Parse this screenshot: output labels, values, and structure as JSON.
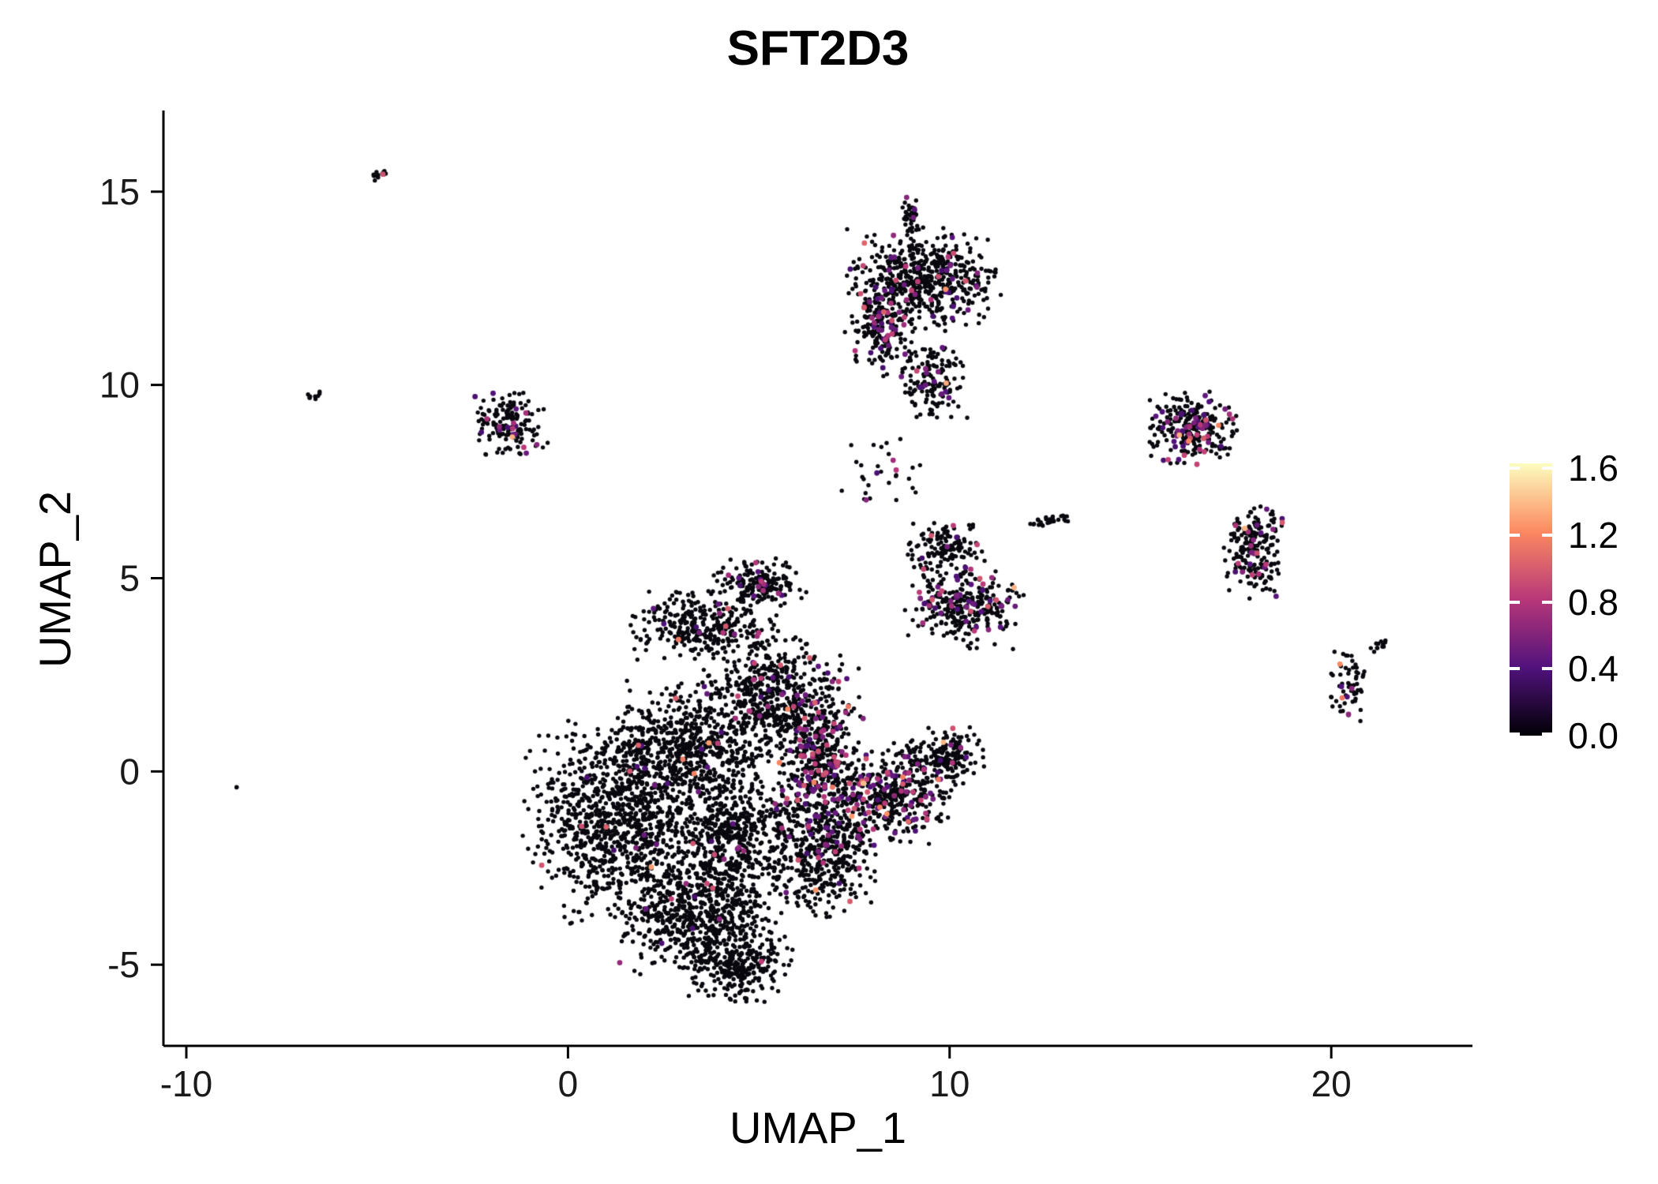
{
  "chart_data": {
    "type": "scatter",
    "title": "SFT2D3",
    "xlabel": "UMAP_1",
    "ylabel": "UMAP_2",
    "x_ticks": [
      -10,
      0,
      10,
      20
    ],
    "y_ticks": [
      -5,
      0,
      5,
      10,
      15
    ],
    "xlim": [
      -10.6,
      23.7
    ],
    "ylim": [
      -7.1,
      17.1
    ],
    "grid": false,
    "point_color_zero": "#08080e",
    "axis_color": "#000000",
    "tick_label_color": "#1a1a1a",
    "seed": 42,
    "legend": {
      "position": "right",
      "title": "",
      "ticks": [
        "1.6",
        "1.2",
        "0.8",
        "0.4",
        "0.0"
      ],
      "tick_values": [
        1.6,
        1.2,
        0.8,
        0.4,
        0.0
      ],
      "vmin": 0.0,
      "vmax": 1.6,
      "bar_max": 1.63,
      "colormap": "magma",
      "stops": [
        {
          "t": 0.0,
          "color": "#000004"
        },
        {
          "t": 0.25,
          "color": "#51127c"
        },
        {
          "t": 0.5,
          "color": "#b73779"
        },
        {
          "t": 0.75,
          "color": "#fc8961"
        },
        {
          "t": 1.0,
          "color": "#fcfdbf"
        }
      ]
    },
    "clusters": [
      {
        "name": "main-left-lobe",
        "cx": 1.2,
        "cy": -1.3,
        "rx": 2.1,
        "ry": 2.3,
        "n": 950,
        "colored_frac": 0.02
      },
      {
        "name": "main-bottom-lobe",
        "cx": 3.4,
        "cy": -3.6,
        "rx": 2.0,
        "ry": 1.5,
        "n": 650,
        "colored_frac": 0.02
      },
      {
        "name": "main-bottom-tip",
        "cx": 4.4,
        "cy": -5.0,
        "rx": 1.3,
        "ry": 0.9,
        "n": 260,
        "colored_frac": 0.01
      },
      {
        "name": "main-center",
        "cx": 4.4,
        "cy": -1.5,
        "rx": 1.6,
        "ry": 1.8,
        "n": 520,
        "colored_frac": 0.03
      },
      {
        "name": "main-upper-left",
        "cx": 3.0,
        "cy": 0.6,
        "rx": 1.9,
        "ry": 1.6,
        "n": 600,
        "colored_frac": 0.02
      },
      {
        "name": "main-upper-mid",
        "cx": 5.3,
        "cy": 1.9,
        "rx": 1.7,
        "ry": 1.5,
        "n": 520,
        "colored_frac": 0.05
      },
      {
        "name": "main-top-arc",
        "cx": 3.6,
        "cy": 3.8,
        "rx": 1.8,
        "ry": 0.8,
        "n": 330,
        "colored_frac": 0.05
      },
      {
        "name": "main-top-bump",
        "cx": 5.0,
        "cy": 4.9,
        "rx": 1.1,
        "ry": 0.55,
        "n": 170,
        "colored_frac": 0.12
      },
      {
        "name": "main-right-band",
        "cx": 6.6,
        "cy": 0.2,
        "rx": 1.0,
        "ry": 2.2,
        "n": 480,
        "colored_frac": 0.2
      },
      {
        "name": "main-lower-right",
        "cx": 6.7,
        "cy": -2.2,
        "rx": 1.2,
        "ry": 1.4,
        "n": 380,
        "colored_frac": 0.06
      },
      {
        "name": "right-lobe",
        "cx": 8.4,
        "cy": -0.6,
        "rx": 1.5,
        "ry": 1.2,
        "n": 430,
        "colored_frac": 0.18
      },
      {
        "name": "right-lobe-ext",
        "cx": 9.9,
        "cy": 0.4,
        "rx": 0.9,
        "ry": 0.7,
        "n": 170,
        "colored_frac": 0.08
      },
      {
        "name": "top-cluster-core",
        "cx": 9.3,
        "cy": 12.7,
        "rx": 1.8,
        "ry": 1.2,
        "n": 560,
        "colored_frac": 0.06
      },
      {
        "name": "top-cluster-left-tail",
        "cx": 8.2,
        "cy": 11.4,
        "rx": 0.7,
        "ry": 1.1,
        "n": 170,
        "colored_frac": 0.18
      },
      {
        "name": "top-cluster-bottom-tail",
        "cx": 9.6,
        "cy": 10.1,
        "rx": 0.8,
        "ry": 0.9,
        "n": 150,
        "colored_frac": 0.08
      },
      {
        "name": "top-cluster-spike",
        "cx": 9.0,
        "cy": 14.4,
        "rx": 0.25,
        "ry": 0.5,
        "n": 40,
        "colored_frac": 0.1
      },
      {
        "name": "mid-right-cluster",
        "cx": 10.4,
        "cy": 4.3,
        "rx": 1.4,
        "ry": 1.0,
        "n": 300,
        "colored_frac": 0.15
      },
      {
        "name": "mid-right-upper",
        "cx": 9.9,
        "cy": 5.8,
        "rx": 0.9,
        "ry": 0.65,
        "n": 130,
        "colored_frac": 0.08
      },
      {
        "name": "mid-right-streak",
        "cx": 12.6,
        "cy": 6.5,
        "rx": 0.55,
        "ry": 0.15,
        "n": 28,
        "colored_frac": 0.05
      },
      {
        "name": "bridge-sparse",
        "cx": 8.2,
        "cy": 7.6,
        "rx": 1.3,
        "ry": 1.2,
        "n": 30,
        "colored_frac": 0.1
      },
      {
        "name": "left-small-cluster",
        "cx": -1.5,
        "cy": 9.0,
        "rx": 0.85,
        "ry": 0.75,
        "n": 160,
        "colored_frac": 0.1
      },
      {
        "name": "tiny-top-left",
        "cx": -5.0,
        "cy": 15.4,
        "rx": 0.28,
        "ry": 0.12,
        "n": 14,
        "colored_frac": 0.15,
        "rot": 35
      },
      {
        "name": "tiny-left",
        "cx": -6.7,
        "cy": 9.7,
        "rx": 0.22,
        "ry": 0.12,
        "n": 9,
        "colored_frac": 0,
        "rot": 20
      },
      {
        "name": "outlier-left",
        "cx": -8.7,
        "cy": -0.4,
        "rx": 0.07,
        "ry": 0.07,
        "n": 2,
        "colored_frac": 0
      },
      {
        "name": "right-cluster-upper",
        "cx": 16.4,
        "cy": 8.9,
        "rx": 1.05,
        "ry": 0.85,
        "n": 270,
        "colored_frac": 0.2
      },
      {
        "name": "right-cluster-lower",
        "cx": 18.0,
        "cy": 5.7,
        "rx": 0.75,
        "ry": 1.15,
        "n": 210,
        "colored_frac": 0.15
      },
      {
        "name": "far-right-small",
        "cx": 20.4,
        "cy": 2.2,
        "rx": 0.5,
        "ry": 0.95,
        "n": 60,
        "colored_frac": 0.08
      },
      {
        "name": "far-right-streak",
        "cx": 21.3,
        "cy": 3.3,
        "rx": 0.4,
        "ry": 0.12,
        "n": 12,
        "colored_frac": 0.08,
        "rot": 30
      }
    ]
  }
}
